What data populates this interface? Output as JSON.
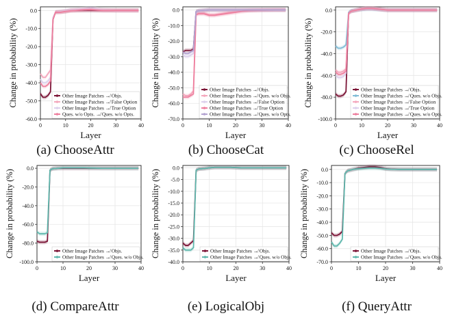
{
  "chart_data": [
    {
      "type": "line",
      "caption": "(a) ChooseAttr",
      "xlabel": "Layer",
      "ylabel": "Change in probability (%)",
      "xlim": [
        0,
        40
      ],
      "ylim": [
        -60,
        2
      ],
      "xticks": [
        "0",
        "10",
        "20",
        "30",
        "40"
      ],
      "yticks": [
        "0.0",
        "-10.0",
        "-20.0",
        "-30.0",
        "-40.0",
        "-50.0",
        "-60.0"
      ],
      "legend_position": "lower-right",
      "series": [
        {
          "name": "Other Image Patches ↛ Objs.",
          "color": "#7b1436",
          "x": [
            0,
            1,
            2,
            3,
            4,
            5,
            6,
            8,
            10,
            12,
            14,
            16,
            18,
            20,
            22,
            25,
            30,
            35,
            39
          ],
          "y": [
            -46,
            -48,
            -48,
            -47,
            -45,
            -5,
            -1,
            -0.8,
            -0.5,
            0,
            0,
            0,
            0,
            0,
            0,
            0,
            0,
            0,
            0
          ]
        },
        {
          "name": "Other Image Patches ↛ False Option",
          "color": "#f4a8bd",
          "x": [
            0,
            1,
            2,
            3,
            4,
            5,
            6,
            8,
            10,
            12,
            14,
            16,
            18,
            20,
            22,
            25,
            30,
            35,
            39
          ],
          "y": [
            -35,
            -37,
            -37,
            -35,
            -33,
            -4,
            -1,
            -0.8,
            -0.5,
            0,
            0.2,
            0.3,
            0.5,
            0.8,
            0.5,
            0.2,
            0,
            0,
            0
          ]
        },
        {
          "name": "Other Image Patches ↛ True Option",
          "color": "#dcd0ec",
          "x": [
            0,
            1,
            2,
            3,
            4,
            5,
            6,
            8,
            10,
            12,
            14,
            16,
            18,
            20,
            22,
            25,
            30,
            35,
            39
          ],
          "y": [
            -38,
            -40,
            -40,
            -39,
            -37,
            -4,
            -1,
            -0.5,
            0,
            0.3,
            0.5,
            0.8,
            1,
            1.5,
            1,
            0.3,
            0,
            0,
            0
          ]
        },
        {
          "name": "Ques. w/o Opts. ↛ Ques. w/o Opts.",
          "color": "#ee7f9e",
          "x": [
            0,
            1,
            2,
            3,
            4,
            5,
            6,
            8,
            10,
            12,
            14,
            16,
            18,
            20,
            22,
            25,
            30,
            35,
            39
          ],
          "y": [
            -40,
            -42,
            -42,
            -41,
            -39,
            -5,
            -1,
            -1,
            -0.5,
            -0.2,
            0,
            0.3,
            0.5,
            0.5,
            0.3,
            0,
            0,
            0,
            0
          ]
        }
      ]
    },
    {
      "type": "line",
      "caption": "(b) ChooseCat",
      "xlabel": "Layer",
      "ylabel": "Change in probability (%)",
      "xlim": [
        0,
        40
      ],
      "ylim": [
        -70,
        2
      ],
      "xticks": [
        "0",
        "10",
        "20",
        "30",
        "40"
      ],
      "yticks": [
        "0.0",
        "-10.0",
        "-20.0",
        "-30.0",
        "-40.0",
        "-50.0",
        "-60.0",
        "-70.0"
      ],
      "legend_position": "lower-right",
      "series": [
        {
          "name": "Other Image Patches ↛ Objs.",
          "color": "#7b1436",
          "x": [
            0,
            1,
            2,
            3,
            4,
            5,
            6,
            8,
            10,
            12,
            14,
            16,
            18,
            20,
            22,
            25,
            30,
            35,
            39
          ],
          "y": [
            -27,
            -26,
            -26,
            -26,
            -25,
            -1,
            -0.5,
            -0.3,
            0,
            0,
            0,
            0,
            0,
            0,
            0,
            0,
            0,
            0,
            0
          ]
        },
        {
          "name": "Other Image Patches ↛ Ques. w/o Objs.",
          "color": "#f4a8bd",
          "x": [
            0,
            1,
            2,
            3,
            4,
            5,
            6,
            8,
            10,
            12,
            14,
            16,
            18,
            20,
            22,
            25,
            30,
            35,
            39
          ],
          "y": [
            -54,
            -55,
            -55,
            -54,
            -52,
            -3,
            -2,
            -2,
            -3,
            -3,
            -2.5,
            -2,
            -1.5,
            -1,
            -0.5,
            -0.2,
            0,
            0,
            0
          ]
        },
        {
          "name": "Other Image Patches ↛ False Option",
          "color": "#dcd0ec",
          "x": [
            0,
            1,
            2,
            3,
            4,
            5,
            6,
            8,
            10,
            12,
            14,
            16,
            18,
            20,
            22,
            25,
            30,
            35,
            39
          ],
          "y": [
            -29,
            -30,
            -30,
            -29,
            -28,
            -1,
            -0.5,
            -0.3,
            0,
            0,
            0,
            0,
            0,
            0,
            0,
            0,
            0,
            0,
            0
          ]
        },
        {
          "name": "Other Image Patches ↛ True Option",
          "color": "#ee7f9e",
          "x": [
            0,
            1,
            2,
            3,
            4,
            5,
            6,
            8,
            10,
            12,
            14,
            16,
            18,
            20,
            22,
            25,
            30,
            35,
            39
          ],
          "y": [
            -56,
            -56,
            -56,
            -55,
            -54,
            -3,
            -2.5,
            -2.5,
            -3.5,
            -3.5,
            -3,
            -2.5,
            -2,
            -1.5,
            -1,
            -0.5,
            -0.2,
            0,
            0
          ]
        },
        {
          "name": "Other Image Patches ↛ Ques. w/o Opts.",
          "color": "#b3a3d1",
          "x": [
            0,
            1,
            2,
            3,
            4,
            5,
            6,
            8,
            10,
            12,
            14,
            16,
            18,
            20,
            22,
            25,
            30,
            35,
            39
          ],
          "y": [
            -27,
            -28,
            -28,
            -27,
            -26,
            -1,
            -0.5,
            -0.2,
            0,
            0,
            0,
            0,
            0,
            0,
            0,
            0,
            0,
            0,
            0
          ]
        }
      ]
    },
    {
      "type": "line",
      "caption": "(c) ChooseRel",
      "xlabel": "Layer",
      "ylabel": "Change in probability (%)",
      "xlim": [
        0,
        40
      ],
      "ylim": [
        -100,
        3
      ],
      "xticks": [
        "0",
        "10",
        "20",
        "30",
        "40"
      ],
      "yticks": [
        "0.0",
        "-20.0",
        "-40.0",
        "-60.0",
        "-80.0",
        "-100.0"
      ],
      "legend_position": "lower-right",
      "series": [
        {
          "name": "Other Image Patches ↛ Objs.",
          "color": "#7b1436",
          "x": [
            0,
            1,
            2,
            3,
            4,
            5,
            6,
            8,
            10,
            12,
            14,
            16,
            18,
            20,
            22,
            25,
            30,
            35,
            39
          ],
          "y": [
            -77,
            -79,
            -79,
            -78,
            -75,
            -3,
            -1,
            0,
            1,
            1.5,
            1.5,
            1,
            0.5,
            0,
            0,
            0,
            0,
            0,
            0
          ]
        },
        {
          "name": "Other Image Patches ↛ Ques. w/o Objs.",
          "color": "#7fbcd6",
          "x": [
            0,
            1,
            2,
            3,
            4,
            5,
            6,
            8,
            10,
            12,
            14,
            16,
            18,
            20,
            22,
            25,
            30,
            35,
            39
          ],
          "y": [
            -33,
            -35,
            -35,
            -34,
            -32,
            -2,
            -0.5,
            0,
            0.5,
            0.8,
            0.8,
            0.5,
            0.2,
            0,
            0,
            0,
            0,
            0,
            0
          ]
        },
        {
          "name": "Other Image Patches ↛ False Option",
          "color": "#f4a8bd",
          "x": [
            0,
            1,
            2,
            3,
            4,
            5,
            6,
            8,
            10,
            12,
            14,
            16,
            18,
            20,
            22,
            25,
            30,
            35,
            39
          ],
          "y": [
            -55,
            -57,
            -57,
            -56,
            -54,
            -3,
            -1,
            0,
            1,
            1.5,
            1.5,
            1,
            0.5,
            0,
            0,
            0,
            0,
            0,
            0
          ]
        },
        {
          "name": "Other Image Patches ↛ True Option",
          "color": "#dcd0ec",
          "x": [
            0,
            1,
            2,
            3,
            4,
            5,
            6,
            8,
            10,
            12,
            14,
            16,
            18,
            20,
            22,
            25,
            30,
            35,
            39
          ],
          "y": [
            -60,
            -62,
            -62,
            -61,
            -58,
            -3,
            -1,
            0,
            1,
            1.2,
            1.2,
            0.8,
            0.4,
            0,
            0,
            0,
            0,
            0,
            0
          ]
        },
        {
          "name": "Other Image Patches ↛ Ques. w/o Opts.",
          "color": "#ee7f9e",
          "x": [
            0,
            1,
            2,
            3,
            4,
            5,
            6,
            8,
            10,
            12,
            14,
            16,
            18,
            20,
            22,
            25,
            30,
            35,
            39
          ],
          "y": [
            -57,
            -59,
            -59,
            -58,
            -56,
            -3,
            -1,
            0,
            1,
            1.5,
            1.5,
            1,
            0.5,
            0,
            0,
            0,
            0,
            0,
            0
          ]
        }
      ]
    },
    {
      "type": "line",
      "caption": "(d) CompareAttr",
      "xlabel": "Layer",
      "ylabel": "Change in probability (%)",
      "xlim": [
        0,
        40
      ],
      "ylim": [
        -100,
        3
      ],
      "xticks": [
        "0",
        "10",
        "20",
        "30",
        "40"
      ],
      "yticks": [
        "0.0",
        "-20.0",
        "-40.0",
        "-60.0",
        "-80.0",
        "-100.0"
      ],
      "legend_position": "lower-right",
      "series": [
        {
          "name": "Other Image Patches ↛ Objs.",
          "color": "#7b1436",
          "x": [
            0,
            1,
            2,
            3,
            4,
            5,
            6,
            8,
            10,
            12,
            14,
            16,
            18,
            20,
            22,
            25,
            30,
            35,
            39
          ],
          "y": [
            -78,
            -79,
            -79,
            -79,
            -78,
            -2,
            -0.5,
            0,
            0,
            0,
            0,
            0,
            0,
            0,
            0,
            0,
            0,
            0,
            0
          ]
        },
        {
          "name": "Other Image Patches ↛ Ques. w/o Objs.",
          "color": "#5fb8ad",
          "x": [
            0,
            1,
            2,
            3,
            4,
            5,
            6,
            8,
            10,
            12,
            14,
            16,
            18,
            20,
            22,
            25,
            30,
            35,
            39
          ],
          "y": [
            -68,
            -70,
            -70,
            -70,
            -69,
            -2,
            -0.5,
            0,
            0.5,
            0.5,
            0.5,
            0.5,
            0.5,
            0.3,
            0.2,
            0,
            0,
            0,
            0
          ]
        }
      ]
    },
    {
      "type": "line",
      "caption": "(e) LogicalObj",
      "xlabel": "Layer",
      "ylabel": "Change in probability (%)",
      "xlim": [
        0,
        40
      ],
      "ylim": [
        -40,
        1
      ],
      "xticks": [
        "0",
        "10",
        "20",
        "30",
        "40"
      ],
      "yticks": [
        "0.0",
        "-5.0",
        "-10.0",
        "-15.0",
        "-20.0",
        "-25.0",
        "-30.0",
        "-35.0",
        "-40.0"
      ],
      "legend_position": "lower-right",
      "series": [
        {
          "name": "Other Image Patches ↛ Objs.",
          "color": "#7b1436",
          "x": [
            0,
            1,
            2,
            3,
            4,
            5,
            6,
            8,
            10,
            12,
            14,
            16,
            18,
            20,
            22,
            25,
            30,
            35,
            39
          ],
          "y": [
            -32,
            -33,
            -33,
            -32,
            -31,
            -1,
            -0.5,
            -0.3,
            0,
            0.2,
            0.2,
            0.2,
            0.2,
            0.1,
            0,
            0,
            0,
            0,
            0
          ]
        },
        {
          "name": "Other Image Patches ↛ Ques. w/o Objs.",
          "color": "#5fb8ad",
          "x": [
            0,
            1,
            2,
            3,
            4,
            5,
            6,
            8,
            10,
            12,
            14,
            16,
            18,
            20,
            22,
            25,
            30,
            35,
            39
          ],
          "y": [
            -34,
            -35,
            -35,
            -35,
            -34,
            -1,
            -0.5,
            -0.3,
            0,
            0.2,
            0.2,
            0.2,
            0.2,
            0.1,
            0,
            0,
            0,
            0,
            0
          ]
        }
      ]
    },
    {
      "type": "line",
      "caption": "(f) QueryAttr",
      "xlabel": "Layer",
      "ylabel": "Change in probability (%)",
      "xlim": [
        0,
        40
      ],
      "ylim": [
        -70,
        3
      ],
      "xticks": [
        "0",
        "10",
        "20",
        "30",
        "40"
      ],
      "yticks": [
        "0.0",
        "-10.0",
        "-20.0",
        "-30.0",
        "-40.0",
        "-50.0",
        "-60.0",
        "-70.0"
      ],
      "legend_position": "lower-right",
      "series": [
        {
          "name": "Other Image Patches ↛ Objs.",
          "color": "#7b1436",
          "x": [
            0,
            1,
            2,
            3,
            4,
            5,
            6,
            8,
            10,
            12,
            14,
            16,
            18,
            20,
            22,
            25,
            30,
            35,
            39
          ],
          "y": [
            -48,
            -50,
            -50,
            -49,
            -47,
            -3,
            -1,
            0,
            1,
            1.5,
            2,
            2,
            1.5,
            0.5,
            0.2,
            0,
            0,
            0,
            0
          ]
        },
        {
          "name": "Other Image Patches ↛ Ques. w/o Objs.",
          "color": "#5fb8ad",
          "x": [
            0,
            1,
            2,
            3,
            4,
            5,
            6,
            8,
            10,
            12,
            14,
            16,
            18,
            20,
            22,
            25,
            30,
            35,
            39
          ],
          "y": [
            -55,
            -58,
            -58,
            -56,
            -53,
            -3,
            -1,
            0,
            0.5,
            0.8,
            1,
            1,
            0.8,
            0.3,
            0.1,
            0,
            0,
            0,
            0
          ]
        }
      ]
    }
  ]
}
